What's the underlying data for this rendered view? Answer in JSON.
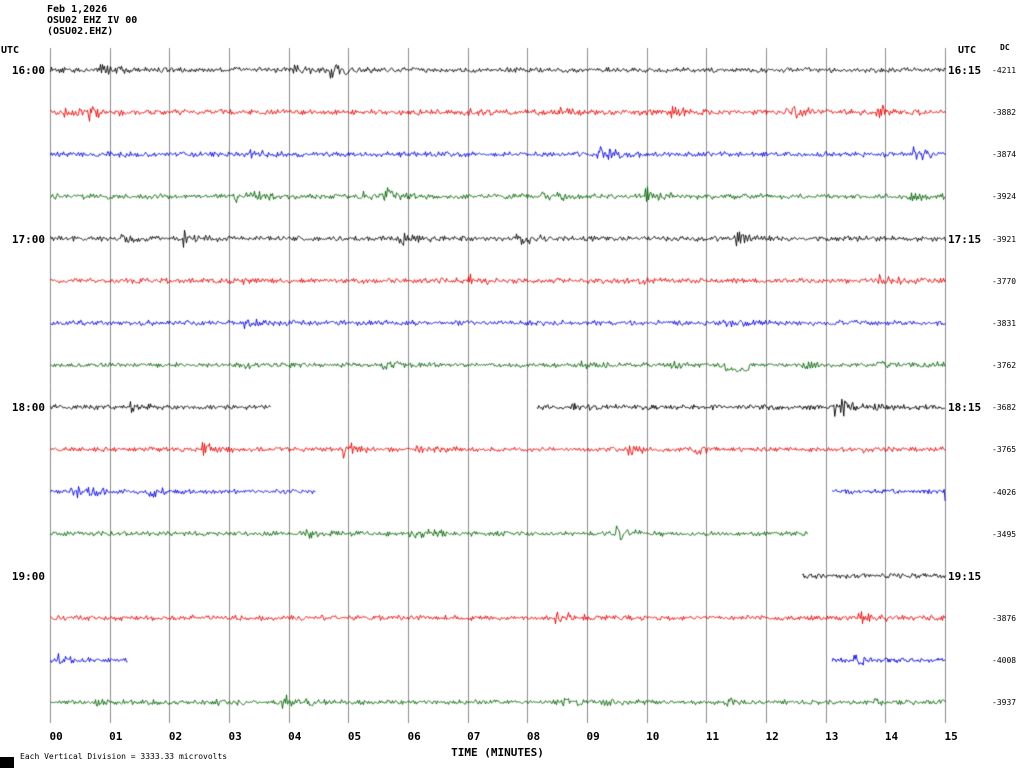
{
  "header": {
    "date": "Feb 1,2026",
    "station": "OSU02 EHZ IV 00",
    "channel": "(OSU02.EHZ)"
  },
  "labels": {
    "utc_left": "UTC",
    "utc_right": "UTC",
    "dc": "DC",
    "footnote": "Each Vertical Division = 3333.33 microvolts"
  },
  "chart_data": {
    "type": "line",
    "title": "OSU02 EHZ IV 00 helicorder, Feb 1,2026",
    "x_label": "TIME (MINUTES)",
    "x_range_minutes": [
      0,
      15
    ],
    "x_ticks": [
      "00",
      "01",
      "02",
      "03",
      "04",
      "05",
      "06",
      "07",
      "08",
      "09",
      "10",
      "11",
      "12",
      "13",
      "14",
      "15"
    ],
    "minutes_per_row": 15,
    "vertical_division_microvolts": 3333.33,
    "grid": true,
    "trace_colors": {
      "black": "#000000",
      "red": "#e60000",
      "blue": "#0000dd",
      "green": "#006400"
    },
    "rows": [
      {
        "left_time": "16:00",
        "right_time": "16:15",
        "color": "black",
        "dc": "-4211",
        "segments": [
          [
            0,
            15
          ]
        ],
        "amp": 1.0,
        "anomalies": []
      },
      {
        "left_time": "",
        "right_time": "",
        "color": "red",
        "dc": "-3882",
        "segments": [
          [
            0,
            15
          ]
        ],
        "amp": 1.1,
        "anomalies": []
      },
      {
        "left_time": "",
        "right_time": "",
        "color": "blue",
        "dc": "-3874",
        "segments": [
          [
            0,
            15
          ]
        ],
        "amp": 1.0,
        "anomalies": []
      },
      {
        "left_time": "",
        "right_time": "",
        "color": "green",
        "dc": "-3924",
        "segments": [
          [
            0,
            15
          ]
        ],
        "amp": 1.0,
        "anomalies": []
      },
      {
        "left_time": "17:00",
        "right_time": "17:15",
        "color": "black",
        "dc": "-3921",
        "segments": [
          [
            0,
            15
          ]
        ],
        "amp": 1.0,
        "anomalies": []
      },
      {
        "left_time": "",
        "right_time": "",
        "color": "red",
        "dc": "-3770",
        "segments": [
          [
            0,
            15
          ]
        ],
        "amp": 1.0,
        "anomalies": []
      },
      {
        "left_time": "",
        "right_time": "",
        "color": "blue",
        "dc": "-3831",
        "segments": [
          [
            0,
            15
          ]
        ],
        "amp": 1.0,
        "anomalies": []
      },
      {
        "left_time": "",
        "right_time": "",
        "color": "green",
        "dc": "-3762",
        "segments": [
          [
            0,
            15
          ]
        ],
        "amp": 0.9,
        "anomalies": [
          {
            "start_min": 11.3,
            "end_min": 11.7,
            "dy": 5
          }
        ]
      },
      {
        "left_time": "18:00",
        "right_time": "18:15",
        "color": "black",
        "dc": "-3682",
        "segments": [
          [
            0,
            3.7
          ],
          [
            8.15,
            15
          ]
        ],
        "amp": 1.0,
        "anomalies": []
      },
      {
        "left_time": "",
        "right_time": "",
        "color": "red",
        "dc": "-3765",
        "segments": [
          [
            0,
            15
          ]
        ],
        "amp": 0.9,
        "anomalies": [
          {
            "start_min": 10.75,
            "end_min": 10.9,
            "dy": 3
          }
        ]
      },
      {
        "left_time": "",
        "right_time": "",
        "color": "blue",
        "dc": "-4026",
        "segments": [
          [
            0,
            4.45
          ],
          [
            13.1,
            15
          ]
        ],
        "amp": 0.9,
        "anomalies": []
      },
      {
        "left_time": "",
        "right_time": "",
        "color": "green",
        "dc": "-3495",
        "segments": [
          [
            0,
            12.7
          ]
        ],
        "amp": 0.9,
        "anomalies": []
      },
      {
        "left_time": "19:00",
        "right_time": "19:15",
        "color": "black",
        "dc": "",
        "segments": [
          [
            12.6,
            15
          ]
        ],
        "amp": 1.0,
        "anomalies": []
      },
      {
        "left_time": "",
        "right_time": "",
        "color": "red",
        "dc": "-3876",
        "segments": [
          [
            0,
            15
          ]
        ],
        "amp": 1.0,
        "anomalies": []
      },
      {
        "left_time": "",
        "right_time": "",
        "color": "blue",
        "dc": "-4008",
        "segments": [
          [
            0,
            1.3
          ],
          [
            13.1,
            15
          ]
        ],
        "amp": 0.9,
        "anomalies": []
      },
      {
        "left_time": "",
        "right_time": "",
        "color": "green",
        "dc": "-3937",
        "segments": [
          [
            0,
            15
          ]
        ],
        "amp": 0.9,
        "anomalies": []
      }
    ]
  }
}
